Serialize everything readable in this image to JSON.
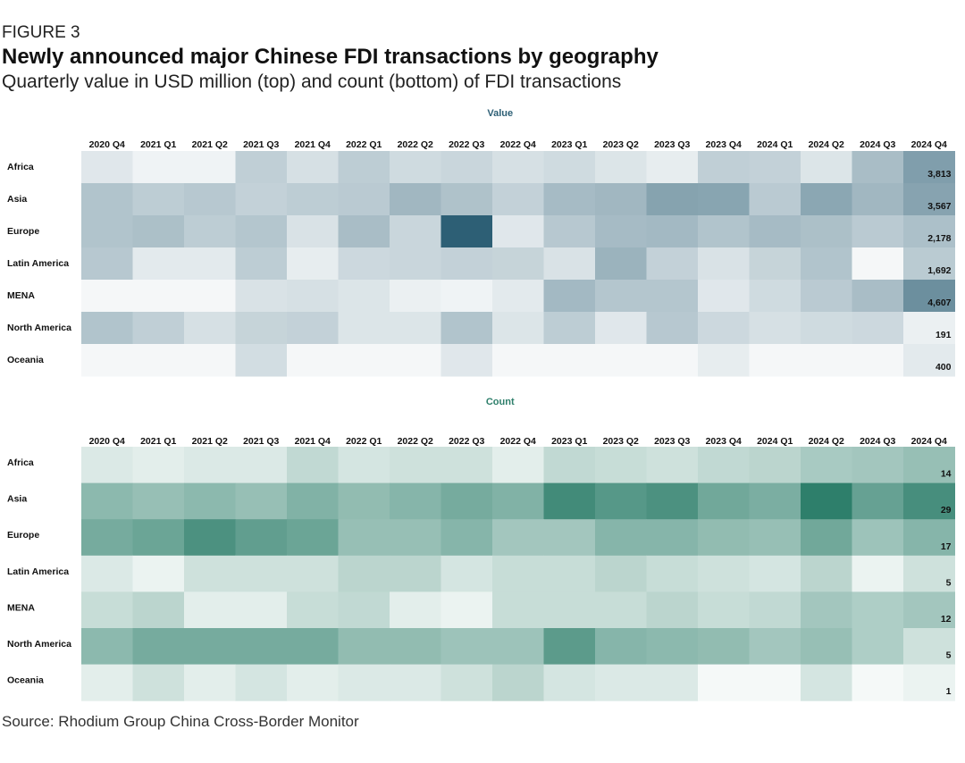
{
  "figure_label": "FIGURE 3",
  "title": "Newly announced major Chinese FDI transactions by geography",
  "subtitle": "Quarterly value in USD million (top) and count (bottom) of FDI transactions",
  "source": "Source: Rhodium Group China Cross-Border Monitor",
  "chart_data": [
    {
      "type": "heatmap",
      "title": "Value",
      "color": "#2d5f75",
      "columns": [
        "2020 Q4",
        "2021 Q1",
        "2021 Q2",
        "2021 Q3",
        "2021 Q4",
        "2022 Q1",
        "2022 Q2",
        "2022 Q3",
        "2022 Q4",
        "2023 Q1",
        "2023 Q2",
        "2023 Q3",
        "2023 Q4",
        "2024 Q1",
        "2024 Q2",
        "2024 Q3",
        "2024 Q4"
      ],
      "rows": [
        "Africa",
        "Asia",
        "Europe",
        "Latin America",
        "MENA",
        "North America",
        "Oceania"
      ],
      "values": [
        [
          500,
          100,
          100,
          1500,
          800,
          1600,
          1000,
          1200,
          800,
          1000,
          600,
          300,
          1500,
          1400,
          600,
          2300,
          3813
        ],
        [
          2000,
          1600,
          1800,
          1400,
          1600,
          1700,
          2600,
          2100,
          1400,
          2400,
          2600,
          3600,
          3500,
          1700,
          3400,
          2600,
          3567
        ],
        [
          2000,
          2200,
          1600,
          1900,
          700,
          2300,
          1200,
          7200,
          500,
          1800,
          2400,
          2500,
          2000,
          2400,
          2200,
          1700,
          2178
        ],
        [
          1800,
          400,
          400,
          1600,
          300,
          1100,
          1200,
          1400,
          1300,
          700,
          2800,
          1400,
          700,
          1300,
          2000,
          0,
          1692
        ],
        [
          0,
          0,
          0,
          700,
          800,
          600,
          200,
          100,
          400,
          2500,
          1900,
          1900,
          500,
          1000,
          1700,
          2300,
          4607
        ],
        [
          2000,
          1500,
          800,
          1300,
          1400,
          600,
          600,
          2000,
          600,
          1600,
          500,
          1800,
          1100,
          800,
          1000,
          1100,
          191
        ],
        [
          0,
          0,
          0,
          900,
          0,
          0,
          0,
          500,
          0,
          0,
          0,
          0,
          300,
          0,
          0,
          0,
          400
        ]
      ],
      "row_labels_last": [
        "3,813",
        "3,567",
        "2,178",
        "1,692",
        "4,607",
        "191",
        "400"
      ]
    },
    {
      "type": "heatmap",
      "title": "Count",
      "color": "#2e7f6b",
      "columns": [
        "2020 Q4",
        "2021 Q1",
        "2021 Q2",
        "2021 Q3",
        "2021 Q4",
        "2022 Q1",
        "2022 Q2",
        "2022 Q3",
        "2022 Q4",
        "2023 Q1",
        "2023 Q2",
        "2023 Q3",
        "2023 Q4",
        "2024 Q1",
        "2024 Q2",
        "2024 Q3",
        "2024 Q4"
      ],
      "rows": [
        "Africa",
        "Asia",
        "Europe",
        "Latin America",
        "MENA",
        "North America",
        "Oceania"
      ],
      "values": [
        [
          3,
          2,
          3,
          3,
          7,
          4,
          5,
          5,
          2,
          7,
          6,
          5,
          7,
          8,
          11,
          12,
          14
        ],
        [
          16,
          14,
          16,
          14,
          18,
          15,
          17,
          20,
          18,
          30,
          26,
          28,
          21,
          19,
          34,
          23,
          29
        ],
        [
          20,
          22,
          28,
          24,
          22,
          14,
          14,
          17,
          12,
          12,
          17,
          17,
          15,
          14,
          21,
          13,
          17
        ],
        [
          3,
          1,
          5,
          5,
          5,
          8,
          8,
          4,
          6,
          6,
          8,
          6,
          5,
          4,
          8,
          1,
          5
        ],
        [
          6,
          8,
          2,
          2,
          6,
          7,
          2,
          1,
          6,
          6,
          6,
          8,
          6,
          7,
          12,
          10,
          12
        ],
        [
          16,
          20,
          20,
          20,
          20,
          15,
          15,
          13,
          13,
          25,
          17,
          16,
          15,
          12,
          14,
          10,
          5
        ],
        [
          2,
          5,
          2,
          4,
          2,
          3,
          3,
          5,
          8,
          4,
          3,
          3,
          0,
          0,
          4,
          0,
          1
        ]
      ],
      "row_labels_last": [
        "14",
        "29",
        "17",
        "5",
        "12",
        "5",
        "1"
      ]
    }
  ]
}
